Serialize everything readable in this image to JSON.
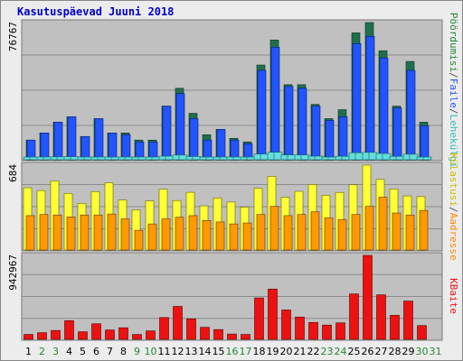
{
  "title": "Kasutuspäevad Juuni 2018",
  "colors": {
    "frame_bg": "#ececec",
    "plot_bg": "#c0c0c0",
    "title": "#0000cc",
    "hits_front": "#0044ee",
    "hits_top": "#1f6f4f",
    "pages_light": "#66dddd",
    "files": "#2255ff",
    "visits": "#ffff33",
    "sites": "#ff9900",
    "kbytes": "#ee1111",
    "weekday_label": "#000000",
    "weekend_label": "#228833"
  },
  "chart_data": [
    {
      "type": "bar",
      "panel": "top",
      "ymax_label": "76767",
      "categories": [
        "1",
        "2",
        "3",
        "4",
        "5",
        "6",
        "7",
        "8",
        "9",
        "10",
        "11",
        "12",
        "13",
        "14",
        "15",
        "16",
        "17",
        "18",
        "19",
        "20",
        "21",
        "22",
        "23",
        "24",
        "25",
        "26",
        "27",
        "28",
        "29",
        "30",
        "31"
      ],
      "series": [
        {
          "name": "Pöördumisi",
          "values": [
            11000,
            15000,
            21000,
            24000,
            13000,
            23000,
            15000,
            15000,
            11000,
            11000,
            30000,
            40000,
            26000,
            14000,
            17000,
            12000,
            10000,
            53000,
            67000,
            42000,
            42000,
            31000,
            23000,
            28000,
            71000,
            76767,
            61000,
            30000,
            55000,
            21000,
            0
          ]
        },
        {
          "name": "Faile",
          "values": [
            11000,
            15000,
            21000,
            24000,
            13000,
            23000,
            15000,
            14000,
            10000,
            10000,
            30000,
            37000,
            23000,
            11000,
            17000,
            11000,
            9000,
            50000,
            63000,
            41000,
            40000,
            30000,
            22000,
            24000,
            65000,
            69000,
            57000,
            29000,
            50000,
            19000,
            0
          ]
        },
        {
          "name": "Lehekülgi",
          "values": [
            900,
            1100,
            1600,
            1700,
            900,
            1500,
            1100,
            1000,
            800,
            800,
            2000,
            2600,
            1800,
            900,
            1200,
            800,
            700,
            3200,
            4200,
            2700,
            2700,
            2000,
            1500,
            1900,
            3900,
            4100,
            3500,
            1900,
            3100,
            1300,
            0
          ]
        }
      ]
    },
    {
      "type": "bar",
      "panel": "middle",
      "ymax_label": "684",
      "categories": [
        "1",
        "2",
        "3",
        "4",
        "5",
        "6",
        "7",
        "8",
        "9",
        "10",
        "11",
        "12",
        "13",
        "14",
        "15",
        "16",
        "17",
        "18",
        "19",
        "20",
        "21",
        "22",
        "23",
        "24",
        "25",
        "26",
        "27",
        "28",
        "29",
        "30",
        "31"
      ],
      "series": [
        {
          "name": "Külastusi",
          "values": [
            502,
            479,
            557,
            456,
            376,
            471,
            542,
            403,
            324,
            396,
            490,
            399,
            465,
            356,
            420,
            387,
            346,
            497,
            593,
            426,
            473,
            528,
            441,
            464,
            526,
            684,
            569,
            492,
            436,
            430,
            0
          ]
        },
        {
          "name": "Aadresse",
          "values": [
            277,
            286,
            282,
            267,
            282,
            282,
            290,
            251,
            159,
            210,
            251,
            264,
            277,
            238,
            226,
            210,
            218,
            286,
            352,
            277,
            286,
            308,
            259,
            246,
            286,
            352,
            425,
            298,
            282,
            319,
            0
          ]
        }
      ]
    },
    {
      "type": "bar",
      "panel": "bottom",
      "ymax_label": "942967",
      "categories": [
        "1",
        "2",
        "3",
        "4",
        "5",
        "6",
        "7",
        "8",
        "9",
        "10",
        "11",
        "12",
        "13",
        "14",
        "15",
        "16",
        "17",
        "18",
        "19",
        "20",
        "21",
        "22",
        "23",
        "24",
        "25",
        "26",
        "27",
        "28",
        "29",
        "30",
        "31"
      ],
      "series": [
        {
          "name": "KBaite",
          "values": [
            55000,
            75000,
            100000,
            210000,
            85000,
            175000,
            105000,
            130000,
            55000,
            95000,
            245000,
            370000,
            230000,
            135000,
            110000,
            60000,
            55000,
            465000,
            565000,
            330000,
            250000,
            190000,
            160000,
            185000,
            510000,
            942967,
            500000,
            270000,
            430000,
            155000,
            0
          ]
        }
      ]
    }
  ],
  "right_labels": {
    "top_parts": [
      {
        "text": "Pöördumisi",
        "color": "#228833"
      },
      {
        "text": "/",
        "color": "#555555"
      },
      {
        "text": "Faile",
        "color": "#2255ff"
      },
      {
        "text": "/",
        "color": "#555555"
      },
      {
        "text": "Lehekülgi",
        "color": "#33bbbb"
      }
    ],
    "middle_parts": [
      {
        "text": "Külastusi",
        "color": "#ccbb00"
      },
      {
        "text": "/",
        "color": "#555555"
      },
      {
        "text": "Aadresse",
        "color": "#ff8800"
      }
    ],
    "bottom_parts": [
      {
        "text": "KBaite",
        "color": "#ee1111"
      }
    ]
  },
  "weekend_days": [
    2,
    3,
    9,
    10,
    16,
    17,
    23,
    24,
    30,
    31
  ]
}
